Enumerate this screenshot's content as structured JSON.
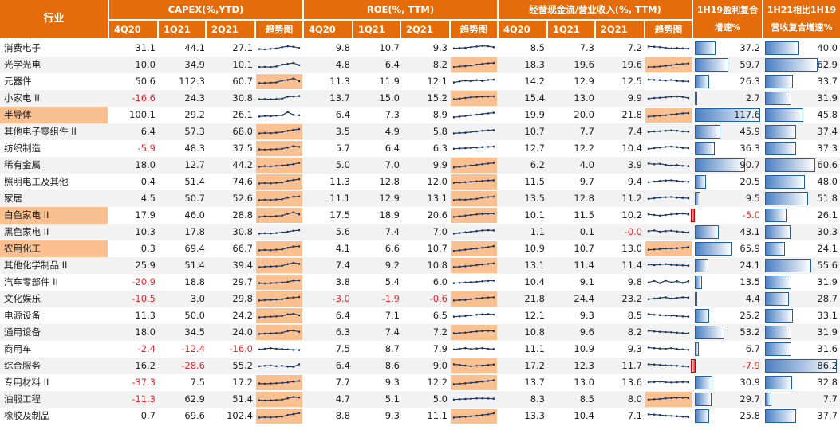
{
  "header": {
    "industry_label": "行业",
    "groups": [
      {
        "title": "CAPEX(%,YTD)",
        "periods": [
          "4Q20",
          "1Q21",
          "2Q21"
        ],
        "trend_label": "趋势图"
      },
      {
        "title": "ROE(%, TTM)",
        "periods": [
          "4Q20",
          "1Q21",
          "2Q21"
        ],
        "trend_label": "趋势图"
      },
      {
        "title": "经营现金流/营业收入(%, TTM)",
        "periods": [
          "4Q20",
          "1Q21",
          "2Q21"
        ],
        "trend_label": "趋势图"
      }
    ],
    "profit_cagr_label": [
      "1H19盈利复合",
      "增速%"
    ],
    "revenue_cagr_label": [
      "1H21相比1H19",
      "营收复合增速%"
    ]
  },
  "colors": {
    "header_bg": "#e46c0a",
    "highlight": "#fac090",
    "negative_text": "#e8252b",
    "bar_positive": "#4a7fc2",
    "bar_negative": "#e8252b",
    "trend_line": "#1f3864"
  },
  "rows": [
    {
      "industry": "消费电子",
      "capex": [
        31.1,
        44.1,
        27.1
      ],
      "roe": [
        9.8,
        10.7,
        9.3
      ],
      "ocf": [
        8.5,
        7.3,
        7.2
      ],
      "profit_cagr": 37.2,
      "revenue_cagr": 40.0,
      "capex_trend": [
        0.4,
        0.38,
        0.42,
        0.45,
        0.55,
        0.62,
        0.58,
        0.48
      ],
      "roe_trend": [
        0.45,
        0.48,
        0.5,
        0.55,
        0.6,
        0.65,
        0.62,
        0.55
      ],
      "ocf_trend": [
        0.6,
        0.58,
        0.55,
        0.5,
        0.45,
        0.48,
        0.45,
        0.44
      ],
      "hl": {
        "industry": false,
        "capex": false,
        "roe": false,
        "ocf": false
      }
    },
    {
      "industry": "光学光电",
      "capex": [
        10.0,
        34.9,
        10.1
      ],
      "roe": [
        4.8,
        6.4,
        8.2
      ],
      "ocf": [
        18.3,
        19.6,
        19.6
      ],
      "profit_cagr": 59.7,
      "revenue_cagr": 62.9,
      "capex_trend": [
        0.3,
        0.32,
        0.3,
        0.35,
        0.5,
        0.55,
        0.62,
        0.45
      ],
      "roe_trend": [
        0.3,
        0.35,
        0.38,
        0.42,
        0.5,
        0.55,
        0.6,
        0.62
      ],
      "ocf_trend": [
        0.3,
        0.32,
        0.35,
        0.4,
        0.45,
        0.52,
        0.55,
        0.58
      ],
      "hl": {
        "industry": false,
        "capex": false,
        "roe": true,
        "ocf": true
      }
    },
    {
      "industry": "元器件",
      "capex": [
        50.6,
        112.3,
        60.7
      ],
      "roe": [
        11.3,
        11.9,
        12.1
      ],
      "ocf": [
        14.2,
        12.9,
        12.5
      ],
      "profit_cagr": 26.3,
      "revenue_cagr": 33.7,
      "capex_trend": [
        0.35,
        0.36,
        0.38,
        0.4,
        0.55,
        0.6,
        0.72,
        0.5
      ],
      "roe_trend": [
        0.4,
        0.48,
        0.55,
        0.5,
        0.58,
        0.52,
        0.6,
        0.62
      ],
      "ocf_trend": [
        0.62,
        0.6,
        0.58,
        0.55,
        0.6,
        0.52,
        0.5,
        0.48
      ],
      "hl": {
        "industry": false,
        "capex": true,
        "roe": false,
        "ocf": false
      }
    },
    {
      "industry": "小家电 II",
      "capex": [
        -16.6,
        24.3,
        30.8
      ],
      "roe": [
        13.7,
        15.0,
        15.2
      ],
      "ocf": [
        15.4,
        13.0,
        9.9
      ],
      "profit_cagr": 2.7,
      "revenue_cagr": 31.9,
      "capex_trend": [
        0.4,
        0.42,
        0.4,
        0.42,
        0.45,
        0.6,
        0.62,
        0.65
      ],
      "roe_trend": [
        0.4,
        0.45,
        0.5,
        0.55,
        0.58,
        0.6,
        0.62,
        0.63
      ],
      "ocf_trend": [
        0.45,
        0.5,
        0.52,
        0.55,
        0.6,
        0.62,
        0.58,
        0.5
      ],
      "hl": {
        "industry": false,
        "capex": false,
        "roe": true,
        "ocf": false
      }
    },
    {
      "industry": "半导体",
      "capex": [
        100.1,
        29.2,
        26.1
      ],
      "roe": [
        6.4,
        7.3,
        8.9
      ],
      "ocf": [
        19.9,
        20.0,
        21.8
      ],
      "profit_cagr": 117.6,
      "revenue_cagr": 45.8,
      "capex_trend": [
        0.35,
        0.4,
        0.38,
        0.42,
        0.45,
        0.7,
        0.48,
        0.45
      ],
      "roe_trend": [
        0.3,
        0.35,
        0.4,
        0.45,
        0.5,
        0.55,
        0.6,
        0.65
      ],
      "ocf_trend": [
        0.35,
        0.38,
        0.42,
        0.45,
        0.5,
        0.55,
        0.6,
        0.62
      ],
      "hl": {
        "industry": true,
        "capex": false,
        "roe": false,
        "ocf": true
      }
    },
    {
      "industry": "其他电子零组件 II",
      "capex": [
        6.4,
        57.3,
        68.0
      ],
      "roe": [
        3.5,
        4.9,
        5.8
      ],
      "ocf": [
        10.7,
        7.7,
        7.4
      ],
      "profit_cagr": 45.9,
      "revenue_cagr": 37.4,
      "capex_trend": [
        0.35,
        0.38,
        0.36,
        0.4,
        0.45,
        0.55,
        0.62,
        0.68
      ],
      "roe_trend": [
        0.35,
        0.38,
        0.4,
        0.45,
        0.5,
        0.55,
        0.58,
        0.6
      ],
      "ocf_trend": [
        0.45,
        0.5,
        0.52,
        0.55,
        0.58,
        0.55,
        0.5,
        0.48
      ],
      "hl": {
        "industry": false,
        "capex": true,
        "roe": false,
        "ocf": false
      }
    },
    {
      "industry": "纺织制造",
      "capex": [
        -5.9,
        48.3,
        37.5
      ],
      "roe": [
        5.7,
        6.4,
        6.3
      ],
      "ocf": [
        12.7,
        12.2,
        10.4
      ],
      "profit_cagr": 36.3,
      "revenue_cagr": 37.3,
      "capex_trend": [
        0.4,
        0.38,
        0.4,
        0.42,
        0.45,
        0.55,
        0.65,
        0.6
      ],
      "roe_trend": [
        0.45,
        0.48,
        0.5,
        0.52,
        0.55,
        0.58,
        0.6,
        0.62
      ],
      "ocf_trend": [
        0.45,
        0.5,
        0.55,
        0.6,
        0.62,
        0.58,
        0.52,
        0.5
      ],
      "hl": {
        "industry": false,
        "capex": true,
        "roe": false,
        "ocf": false
      }
    },
    {
      "industry": "稀有金属",
      "capex": [
        18.0,
        12.7,
        44.2
      ],
      "roe": [
        5.0,
        7.0,
        9.9
      ],
      "ocf": [
        6.2,
        4.0,
        3.9
      ],
      "profit_cagr": 90.7,
      "revenue_cagr": 60.6,
      "capex_trend": [
        0.35,
        0.4,
        0.38,
        0.42,
        0.45,
        0.5,
        0.55,
        0.65
      ],
      "roe_trend": [
        0.3,
        0.35,
        0.4,
        0.45,
        0.5,
        0.55,
        0.6,
        0.65
      ],
      "ocf_trend": [
        0.6,
        0.55,
        0.58,
        0.5,
        0.45,
        0.48,
        0.42,
        0.4
      ],
      "hl": {
        "industry": false,
        "capex": true,
        "roe": true,
        "ocf": false
      }
    },
    {
      "industry": "照明电工及其他",
      "capex": [
        0.4,
        51.4,
        74.6
      ],
      "roe": [
        11.3,
        12.8,
        12.0
      ],
      "ocf": [
        11.5,
        9.7,
        9.4
      ],
      "profit_cagr": 20.5,
      "revenue_cagr": 48.0,
      "capex_trend": [
        0.35,
        0.38,
        0.36,
        0.4,
        0.42,
        0.55,
        0.62,
        0.68
      ],
      "roe_trend": [
        0.4,
        0.42,
        0.45,
        0.48,
        0.52,
        0.55,
        0.58,
        0.6
      ],
      "ocf_trend": [
        0.45,
        0.5,
        0.55,
        0.58,
        0.6,
        0.55,
        0.5,
        0.48
      ],
      "hl": {
        "industry": false,
        "capex": true,
        "roe": true,
        "ocf": false
      }
    },
    {
      "industry": "家居",
      "capex": [
        4.5,
        50.7,
        52.6
      ],
      "roe": [
        11.1,
        12.9,
        13.1
      ],
      "ocf": [
        13.5,
        12.8,
        11.2
      ],
      "profit_cagr": 9.5,
      "revenue_cagr": 51.8,
      "capex_trend": [
        0.35,
        0.38,
        0.36,
        0.4,
        0.42,
        0.55,
        0.62,
        0.64
      ],
      "roe_trend": [
        0.35,
        0.4,
        0.38,
        0.42,
        0.45,
        0.55,
        0.6,
        0.62
      ],
      "ocf_trend": [
        0.45,
        0.5,
        0.55,
        0.58,
        0.6,
        0.55,
        0.52,
        0.5
      ],
      "hl": {
        "industry": false,
        "capex": true,
        "roe": true,
        "ocf": false
      }
    },
    {
      "industry": "白色家电 II",
      "capex": [
        17.9,
        46.0,
        28.8
      ],
      "roe": [
        17.5,
        18.9,
        20.6
      ],
      "ocf": [
        10.1,
        11.5,
        10.2
      ],
      "profit_cagr": -5.0,
      "revenue_cagr": 26.1,
      "capex_trend": [
        0.35,
        0.4,
        0.38,
        0.42,
        0.45,
        0.6,
        0.7,
        0.55
      ],
      "roe_trend": [
        0.35,
        0.4,
        0.45,
        0.5,
        0.55,
        0.58,
        0.6,
        0.62
      ],
      "ocf_trend": [
        0.55,
        0.5,
        0.45,
        0.5,
        0.55,
        0.58,
        0.62,
        0.55
      ],
      "hl": {
        "industry": true,
        "capex": true,
        "roe": true,
        "ocf": false
      }
    },
    {
      "industry": "黑色家电 II",
      "capex": [
        10.3,
        17.8,
        30.8
      ],
      "roe": [
        5.6,
        7.4,
        7.0
      ],
      "ocf": [
        1.1,
        0.1,
        -0.0
      ],
      "profit_cagr": 43.1,
      "revenue_cagr": 30.3,
      "capex_trend": [
        0.35,
        0.38,
        0.36,
        0.4,
        0.45,
        0.5,
        0.58,
        0.62
      ],
      "roe_trend": [
        0.35,
        0.4,
        0.45,
        0.5,
        0.55,
        0.6,
        0.62,
        0.6
      ],
      "ocf_trend": [
        0.55,
        0.6,
        0.5,
        0.55,
        0.58,
        0.52,
        0.48,
        0.45
      ],
      "hl": {
        "industry": false,
        "capex": false,
        "roe": false,
        "ocf": false
      }
    },
    {
      "industry": "农用化工",
      "capex": [
        0.3,
        69.4,
        66.7
      ],
      "roe": [
        4.1,
        6.6,
        10.7
      ],
      "ocf": [
        10.9,
        10.7,
        13.0
      ],
      "profit_cagr": 65.9,
      "revenue_cagr": 24.1,
      "capex_trend": [
        0.35,
        0.38,
        0.36,
        0.4,
        0.42,
        0.55,
        0.65,
        0.66
      ],
      "roe_trend": [
        0.3,
        0.35,
        0.4,
        0.45,
        0.5,
        0.55,
        0.6,
        0.68
      ],
      "ocf_trend": [
        0.4,
        0.42,
        0.45,
        0.48,
        0.5,
        0.52,
        0.55,
        0.6
      ],
      "hl": {
        "industry": true,
        "capex": true,
        "roe": true,
        "ocf": true
      }
    },
    {
      "industry": "其他化学制品 II",
      "capex": [
        25.9,
        51.4,
        39.4
      ],
      "roe": [
        7.4,
        9.2,
        10.8
      ],
      "ocf": [
        13.1,
        11.4,
        11.4
      ],
      "profit_cagr": 24.1,
      "revenue_cagr": 55.6,
      "capex_trend": [
        0.35,
        0.38,
        0.4,
        0.42,
        0.45,
        0.58,
        0.68,
        0.6
      ],
      "roe_trend": [
        0.35,
        0.38,
        0.42,
        0.45,
        0.5,
        0.55,
        0.6,
        0.64
      ],
      "ocf_trend": [
        0.55,
        0.5,
        0.55,
        0.58,
        0.52,
        0.5,
        0.48,
        0.46
      ],
      "hl": {
        "industry": false,
        "capex": true,
        "roe": true,
        "ocf": false
      }
    },
    {
      "industry": "汽车零部件 II",
      "capex": [
        -20.9,
        18.8,
        29.7
      ],
      "roe": [
        3.8,
        5.4,
        6.0
      ],
      "ocf": [
        10.4,
        9.1,
        9.8
      ],
      "profit_cagr": 13.5,
      "revenue_cagr": 31.9,
      "capex_trend": [
        0.4,
        0.38,
        0.4,
        0.42,
        0.45,
        0.5,
        0.6,
        0.62
      ],
      "roe_trend": [
        0.4,
        0.42,
        0.45,
        0.48,
        0.5,
        0.55,
        0.58,
        0.6
      ],
      "ocf_trend": [
        0.45,
        0.58,
        0.4,
        0.6,
        0.45,
        0.55,
        0.42,
        0.55
      ],
      "hl": {
        "industry": false,
        "capex": true,
        "roe": false,
        "ocf": false
      }
    },
    {
      "industry": "文化娱乐",
      "capex": [
        -10.5,
        3.0,
        29.8
      ],
      "roe": [
        -3.0,
        -1.9,
        -0.6
      ],
      "ocf": [
        21.8,
        24.4,
        23.2
      ],
      "profit_cagr": 4.4,
      "revenue_cagr": 28.7,
      "capex_trend": [
        0.35,
        0.38,
        0.4,
        0.42,
        0.45,
        0.55,
        0.58,
        0.62
      ],
      "roe_trend": [
        0.35,
        0.38,
        0.4,
        0.45,
        0.5,
        0.55,
        0.58,
        0.6
      ],
      "ocf_trend": [
        0.45,
        0.5,
        0.55,
        0.6,
        0.5,
        0.55,
        0.6,
        0.58
      ],
      "hl": {
        "industry": false,
        "capex": true,
        "roe": true,
        "ocf": false
      }
    },
    {
      "industry": "电源设备",
      "capex": [
        11.3,
        50.0,
        24.2
      ],
      "roe": [
        6.4,
        7.1,
        6.5
      ],
      "ocf": [
        12.1,
        9.3,
        8.5
      ],
      "profit_cagr": 25.2,
      "revenue_cagr": 33.1,
      "capex_trend": [
        0.35,
        0.38,
        0.4,
        0.42,
        0.45,
        0.58,
        0.62,
        0.5
      ],
      "roe_trend": [
        0.4,
        0.42,
        0.45,
        0.5,
        0.55,
        0.58,
        0.6,
        0.56
      ],
      "ocf_trend": [
        0.6,
        0.55,
        0.52,
        0.5,
        0.48,
        0.45,
        0.42,
        0.4
      ],
      "hl": {
        "industry": false,
        "capex": true,
        "roe": false,
        "ocf": false
      }
    },
    {
      "industry": "通用设备",
      "capex": [
        18.0,
        34.5,
        24.0
      ],
      "roe": [
        6.3,
        7.4,
        7.2
      ],
      "ocf": [
        10.8,
        9.6,
        8.2
      ],
      "profit_cagr": 53.2,
      "revenue_cagr": 31.9,
      "capex_trend": [
        0.35,
        0.38,
        0.4,
        0.42,
        0.45,
        0.58,
        0.62,
        0.52
      ],
      "roe_trend": [
        0.4,
        0.42,
        0.45,
        0.5,
        0.55,
        0.58,
        0.6,
        0.58
      ],
      "ocf_trend": [
        0.6,
        0.55,
        0.52,
        0.5,
        0.48,
        0.45,
        0.42,
        0.4
      ],
      "hl": {
        "industry": false,
        "capex": true,
        "roe": true,
        "ocf": false
      }
    },
    {
      "industry": "商用车",
      "capex": [
        -2.4,
        -12.4,
        -16.0
      ],
      "roe": [
        7.5,
        8.7,
        7.9
      ],
      "ocf": [
        11.1,
        10.9,
        9.3
      ],
      "profit_cagr": 6.7,
      "revenue_cagr": 31.6,
      "capex_trend": [
        0.45,
        0.5,
        0.55,
        0.5,
        0.48,
        0.45,
        0.42,
        0.4
      ],
      "roe_trend": [
        0.45,
        0.5,
        0.55,
        0.48,
        0.52,
        0.55,
        0.5,
        0.48
      ],
      "ocf_trend": [
        0.6,
        0.55,
        0.52,
        0.5,
        0.55,
        0.48,
        0.45,
        0.42
      ],
      "hl": {
        "industry": false,
        "capex": false,
        "roe": false,
        "ocf": false
      }
    },
    {
      "industry": "综合服务",
      "capex": [
        16.2,
        -28.6,
        55.2
      ],
      "roe": [
        6.4,
        8.6,
        9.0
      ],
      "ocf": [
        17.2,
        12.3,
        11.7
      ],
      "profit_cagr": -7.9,
      "revenue_cagr": 86.2,
      "capex_trend": [
        0.45,
        0.48,
        0.5,
        0.45,
        0.48,
        0.42,
        0.4,
        0.6
      ],
      "roe_trend": [
        0.6,
        0.55,
        0.5,
        0.45,
        0.48,
        0.5,
        0.55,
        0.58
      ],
      "ocf_trend": [
        0.6,
        0.58,
        0.55,
        0.52,
        0.5,
        0.48,
        0.45,
        0.42
      ],
      "hl": {
        "industry": false,
        "capex": false,
        "roe": true,
        "ocf": false
      }
    },
    {
      "industry": "专用材料 II",
      "capex": [
        -37.3,
        7.5,
        17.2
      ],
      "roe": [
        7.7,
        9.3,
        12.2
      ],
      "ocf": [
        13.7,
        13.0,
        13.6
      ],
      "profit_cagr": 30.9,
      "revenue_cagr": 32.8,
      "capex_trend": [
        0.4,
        0.38,
        0.4,
        0.42,
        0.45,
        0.48,
        0.55,
        0.6
      ],
      "roe_trend": [
        0.35,
        0.38,
        0.42,
        0.45,
        0.5,
        0.55,
        0.6,
        0.65
      ],
      "ocf_trend": [
        0.5,
        0.52,
        0.55,
        0.5,
        0.48,
        0.5,
        0.52,
        0.5
      ],
      "hl": {
        "industry": false,
        "capex": true,
        "roe": true,
        "ocf": false
      }
    },
    {
      "industry": "油服工程",
      "capex": [
        -11.3,
        62.9,
        51.4
      ],
      "roe": [
        4.7,
        5.1,
        5.0
      ],
      "ocf": [
        8.3,
        8.5,
        8.0
      ],
      "profit_cagr": 29.7,
      "revenue_cagr": 7.7,
      "capex_trend": [
        0.4,
        0.38,
        0.4,
        0.42,
        0.45,
        0.55,
        0.65,
        0.62
      ],
      "roe_trend": [
        0.45,
        0.48,
        0.5,
        0.52,
        0.55,
        0.55,
        0.54,
        0.52
      ],
      "ocf_trend": [
        0.45,
        0.48,
        0.5,
        0.55,
        0.58,
        0.6,
        0.6,
        0.58
      ],
      "hl": {
        "industry": false,
        "capex": true,
        "roe": false,
        "ocf": true
      }
    },
    {
      "industry": "橡胶及制品",
      "capex": [
        0.7,
        69.6,
        102.4
      ],
      "roe": [
        8.8,
        9.3,
        11.1
      ],
      "ocf": [
        13.3,
        10.4,
        7.1
      ],
      "profit_cagr": 25.8,
      "revenue_cagr": 37.7,
      "capex_trend": [
        0.35,
        0.38,
        0.36,
        0.4,
        0.42,
        0.55,
        0.62,
        0.7
      ],
      "roe_trend": [
        0.35,
        0.38,
        0.42,
        0.45,
        0.5,
        0.55,
        0.6,
        0.68
      ],
      "ocf_trend": [
        0.6,
        0.58,
        0.55,
        0.5,
        0.48,
        0.45,
        0.42,
        0.38
      ],
      "hl": {
        "industry": false,
        "capex": true,
        "roe": true,
        "ocf": false
      }
    }
  ]
}
